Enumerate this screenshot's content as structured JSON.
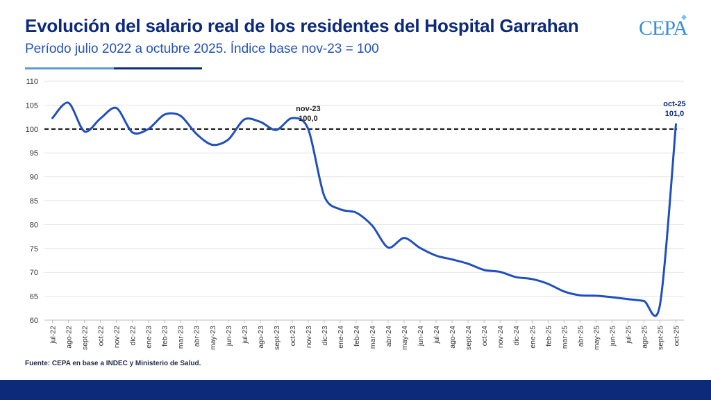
{
  "header": {
    "title": "Evolución del salario real de los residentes del Hospital Garrahan",
    "subtitle": "Período julio 2022 a octubre 2025. Índice base nov-23 = 100"
  },
  "logo": {
    "text": "CEPA"
  },
  "footer": {
    "source": "Fuente: CEPA en base a INDEC y Ministerio de Salud."
  },
  "colors": {
    "title": "#0d2a7a",
    "subtitle": "#2452b8",
    "line": "#1f4fbf",
    "baseline": "#111111",
    "grid": "#e3e3e3",
    "footer_bar": "#0d2a7a",
    "logo": "#3a8fd8"
  },
  "chart_data": {
    "type": "line",
    "categories": [
      "jul-22",
      "ago-22",
      "sept-22",
      "oct-22",
      "nov-22",
      "dic-22",
      "ene-23",
      "feb-23",
      "mar-23",
      "abr-23",
      "may-23",
      "jun-23",
      "jul-23",
      "ago-23",
      "sept-23",
      "oct-23",
      "nov-23",
      "dic-23",
      "ene-24",
      "feb-24",
      "mar-24",
      "abr-24",
      "may-24",
      "jun-24",
      "jul-24",
      "ago-24",
      "sept-24",
      "oct-24",
      "nov-24",
      "dic-24",
      "ene-25",
      "feb-25",
      "mar-25",
      "abr-25",
      "may-25",
      "jun-25",
      "jul-25",
      "ago-25",
      "sept-25",
      "oct-25"
    ],
    "series": [
      {
        "values": [
          102.3,
          105.5,
          99.5,
          102.2,
          104.4,
          99.3,
          100.0,
          103.0,
          102.8,
          99.0,
          96.7,
          97.8,
          102.0,
          101.5,
          99.8,
          102.3,
          100.0,
          86.0,
          83.2,
          82.5,
          79.8,
          75.2,
          77.2,
          75.1,
          73.5,
          72.7,
          71.8,
          70.5,
          70.1,
          69.0,
          68.6,
          67.6,
          66.0,
          65.2,
          65.1,
          64.8,
          64.4,
          64.0,
          63.2,
          101.0
        ]
      }
    ],
    "reference_line": {
      "value": 100,
      "style": "dashed"
    },
    "annotations": [
      {
        "category": "nov-23",
        "value": 100.0,
        "lines": [
          "nov-23",
          "100,0"
        ]
      },
      {
        "category": "oct-25",
        "value": 101.0,
        "lines": [
          "oct-25",
          "101,0"
        ]
      }
    ],
    "yticks": [
      60,
      65,
      70,
      75,
      80,
      85,
      90,
      95,
      100,
      105,
      110
    ],
    "ylim": [
      60,
      110
    ],
    "grid": "horizontal",
    "legend": "none",
    "xlabel": "",
    "ylabel": ""
  }
}
